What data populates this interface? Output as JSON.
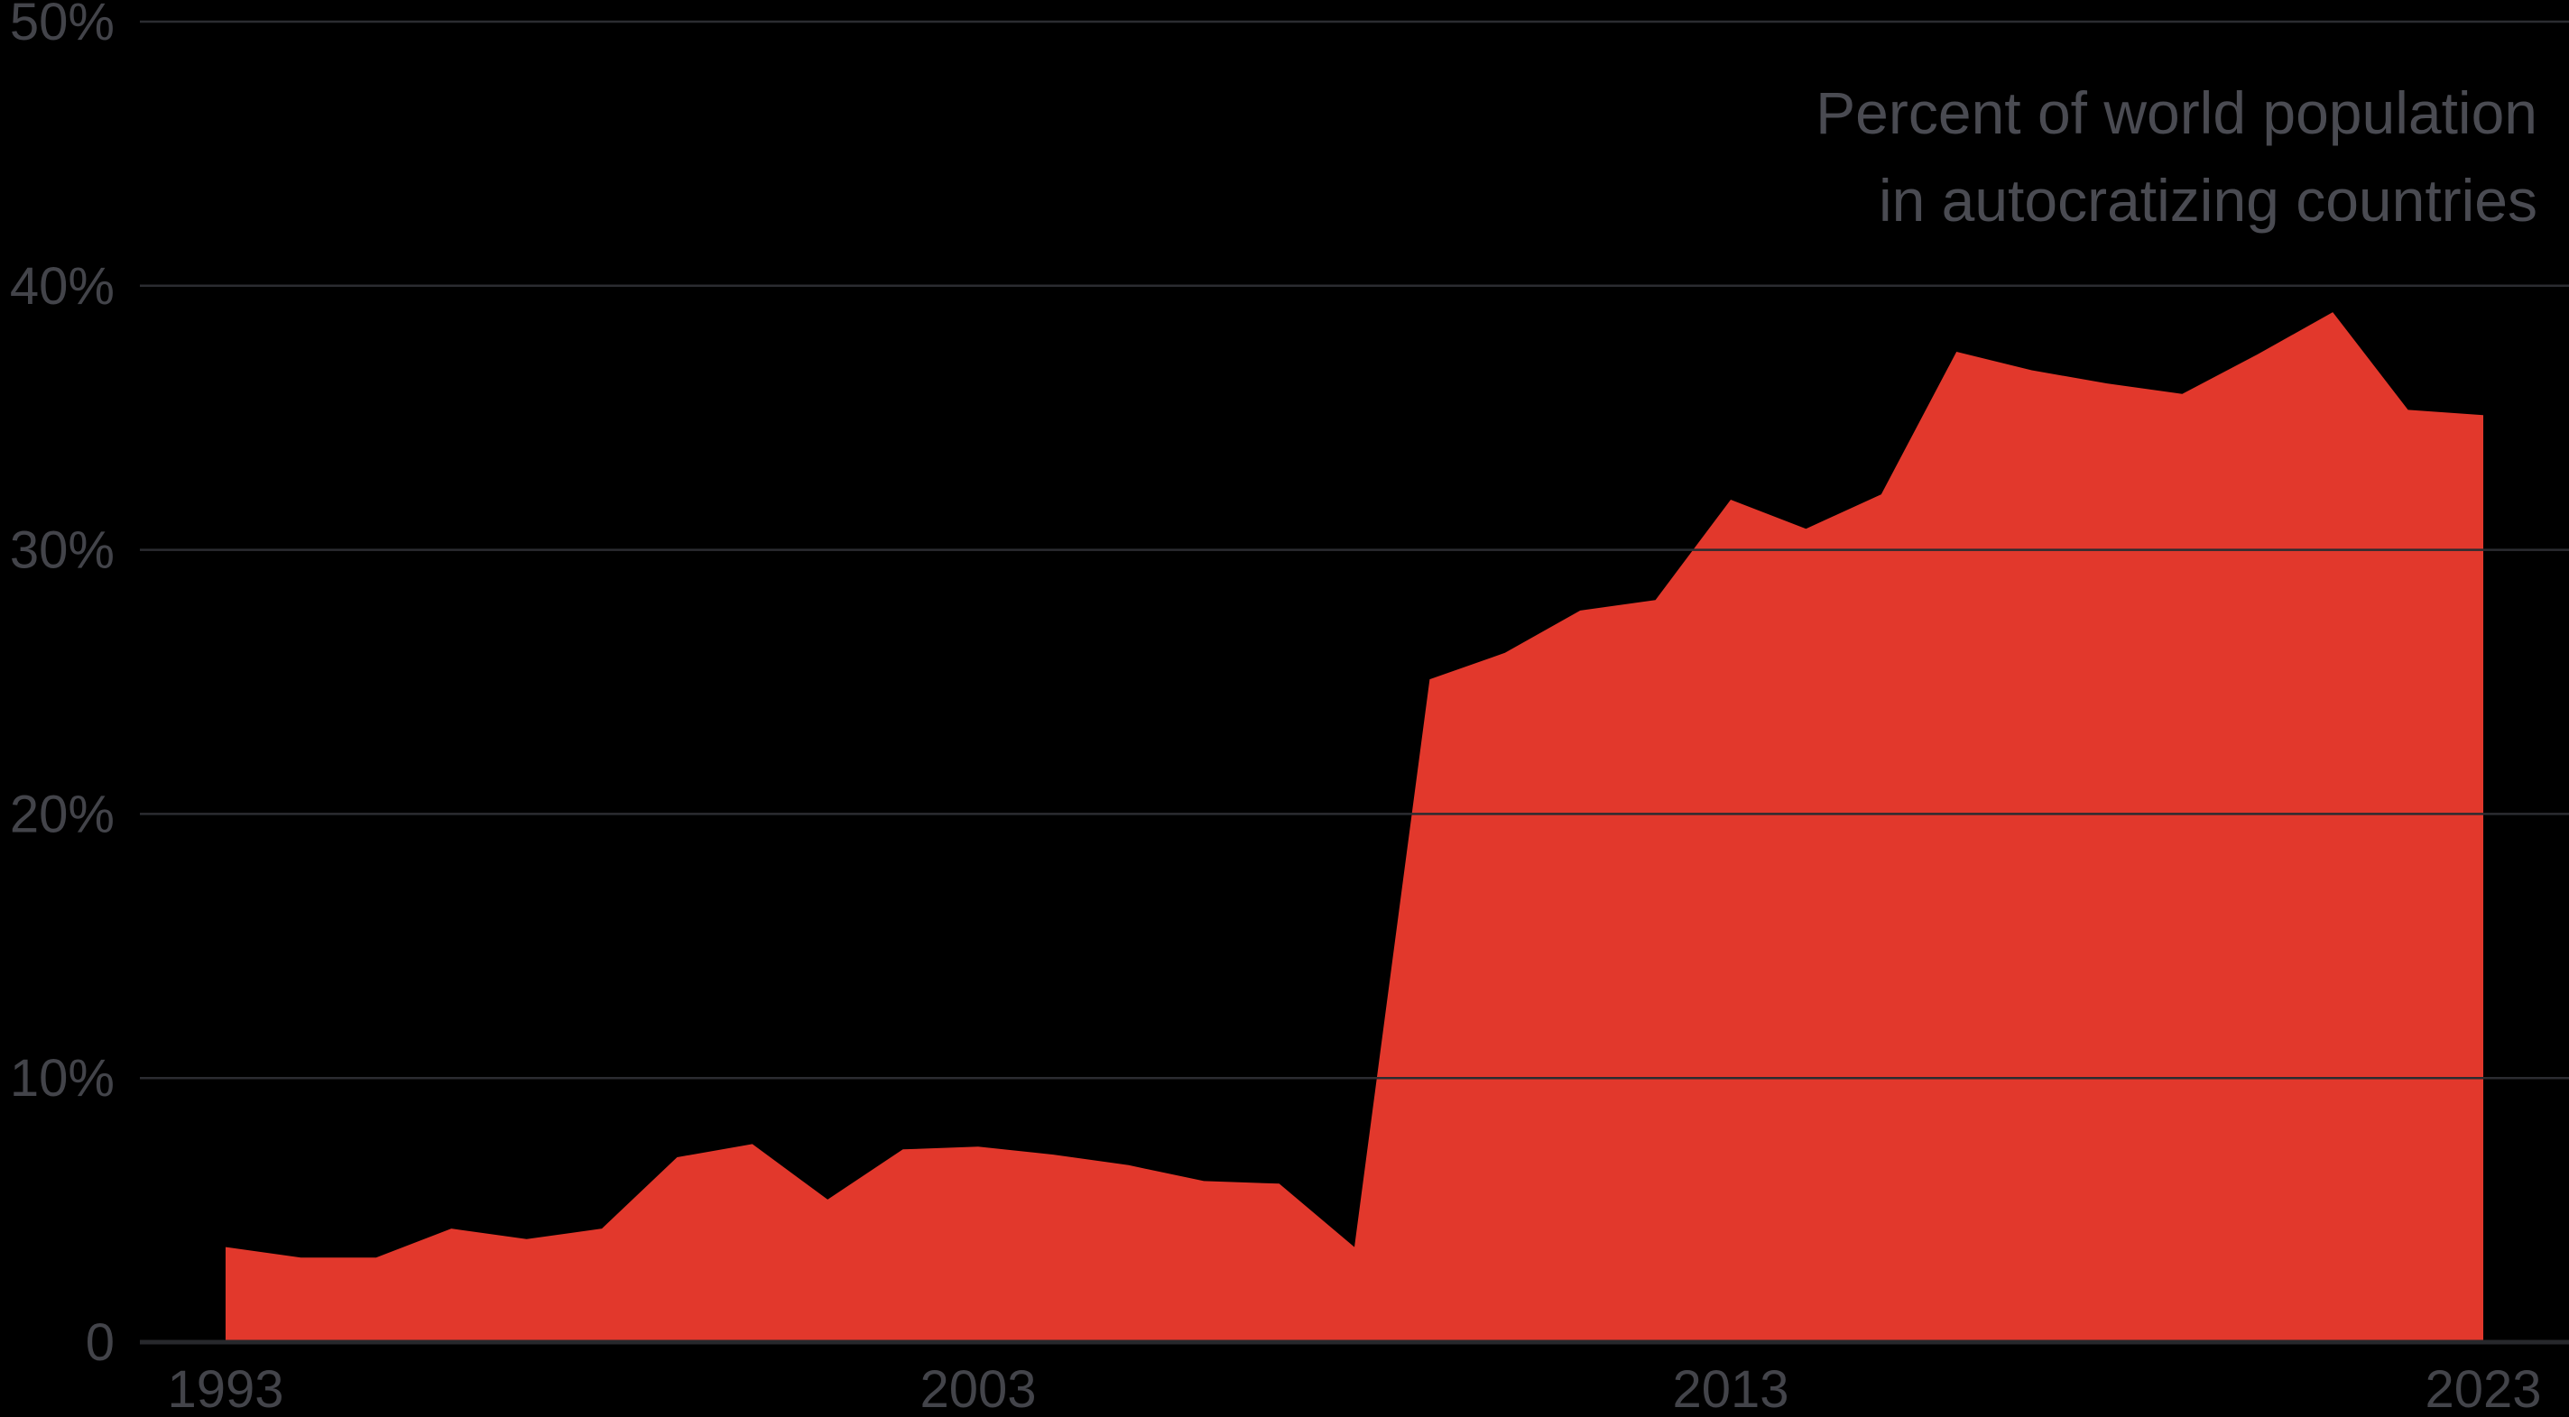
{
  "chart_data": {
    "type": "area",
    "title_line1": "Percent of world population",
    "title_line2": "in autocratizing countries",
    "series_name": "Percent of world population in autocratizing countries",
    "x": [
      1993,
      1994,
      1995,
      1996,
      1997,
      1998,
      1999,
      2000,
      2001,
      2002,
      2003,
      2004,
      2005,
      2006,
      2007,
      2008,
      2009,
      2010,
      2011,
      2012,
      2013,
      2014,
      2015,
      2016,
      2017,
      2018,
      2019,
      2020,
      2021,
      2022,
      2023
    ],
    "values": [
      3.6,
      3.2,
      3.2,
      4.3,
      3.9,
      4.3,
      7.0,
      7.5,
      5.4,
      7.3,
      7.4,
      7.1,
      6.7,
      6.1,
      6.0,
      3.6,
      25.1,
      26.1,
      27.7,
      28.1,
      31.9,
      30.8,
      32.1,
      37.5,
      36.8,
      36.3,
      35.9,
      37.4,
      39.0,
      35.3,
      35.1
    ],
    "xlabel": "",
    "ylabel": "",
    "xlim": [
      1993,
      2023
    ],
    "ylim": [
      0,
      50
    ],
    "grid": "horizontal",
    "legend": "none",
    "y_ticks": [
      {
        "value": 0,
        "label": "0"
      },
      {
        "value": 10,
        "label": "10%"
      },
      {
        "value": 20,
        "label": "20%"
      },
      {
        "value": 30,
        "label": "30%"
      },
      {
        "value": 40,
        "label": "40%"
      },
      {
        "value": 50,
        "label": "50%"
      }
    ],
    "x_ticks": [
      {
        "value": 1993,
        "label": "1993"
      },
      {
        "value": 2003,
        "label": "2003"
      },
      {
        "value": 2013,
        "label": "2013"
      },
      {
        "value": 2023,
        "label": "2023"
      }
    ],
    "colors": {
      "background": "#000000",
      "area_fill": "#E2382C",
      "gridline": "#2B2C31",
      "baseline": "#27282C",
      "tick_label": "#43444A",
      "title": "#4A4B52"
    }
  }
}
